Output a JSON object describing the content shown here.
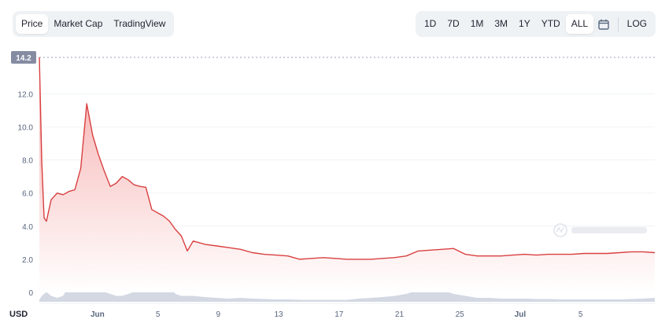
{
  "tabs": [
    "Price",
    "Market Cap",
    "TradingView"
  ],
  "active_tab": "Price",
  "ranges": [
    "1D",
    "7D",
    "1M",
    "3M",
    "1Y",
    "YTD",
    "ALL"
  ],
  "active_range": "ALL",
  "log_label": "LOG",
  "icons": {
    "calendar": "calendar-icon",
    "watermark": "coinmarketcap-logo"
  },
  "colors": {
    "line": "#d94040",
    "fill_top": "#f4a6a6",
    "fill_bottom": "#ffffff",
    "volume": "#c9cfde",
    "text": "#58667e"
  },
  "chart_data": {
    "type": "area",
    "y_unit": "USD",
    "ylim": [
      0,
      14.2
    ],
    "y_ticks": [
      "14.2",
      "12.0",
      "10.0",
      "8.0",
      "6.0",
      "4.0",
      "2.0",
      "0"
    ],
    "x_ticks": [
      "Jun",
      "5",
      "9",
      "13",
      "17",
      "21",
      "25",
      "Jul",
      "5"
    ],
    "x": [
      0,
      0.2,
      0.4,
      0.6,
      1,
      1.5,
      2,
      2.5,
      3,
      3.5,
      4,
      4.5,
      5,
      5.5,
      6,
      6.5,
      7,
      7.5,
      8,
      8.5,
      9,
      9.5,
      10,
      10.5,
      11,
      11.5,
      12,
      12.5,
      13,
      14,
      15,
      16,
      17,
      18,
      19,
      20,
      21,
      22,
      23,
      24,
      25,
      26,
      27,
      28,
      29,
      30,
      31,
      32,
      33,
      34,
      35,
      36,
      37,
      38,
      39,
      40,
      41,
      42,
      43,
      44,
      45,
      46,
      47,
      48,
      49,
      50,
      51,
      52
    ],
    "price": [
      14.2,
      8.0,
      4.5,
      4.3,
      5.6,
      6.0,
      5.9,
      6.1,
      6.2,
      7.5,
      11.4,
      9.5,
      8.3,
      7.3,
      6.4,
      6.6,
      7.0,
      6.8,
      6.5,
      6.4,
      6.35,
      5.0,
      4.8,
      4.6,
      4.3,
      3.8,
      3.4,
      2.5,
      3.1,
      2.9,
      2.8,
      2.7,
      2.6,
      2.4,
      2.3,
      2.25,
      2.2,
      2.0,
      2.05,
      2.1,
      2.05,
      2.0,
      2.0,
      2.0,
      2.05,
      2.1,
      2.2,
      2.5,
      2.55,
      2.6,
      2.65,
      2.3,
      2.2,
      2.2,
      2.2,
      2.25,
      2.3,
      2.25,
      2.3,
      2.3,
      2.3,
      2.35,
      2.35,
      2.35,
      2.4,
      2.45,
      2.45,
      2.4
    ],
    "volume": [
      0.05,
      0.15,
      0.2,
      0.25,
      0.15,
      0.1,
      0.15,
      0.4,
      0.9,
      1.0,
      0.8,
      0.5,
      0.35,
      0.25,
      0.2,
      0.15,
      0.15,
      0.2,
      0.25,
      0.3,
      0.35,
      0.4,
      0.6,
      0.55,
      0.4,
      0.2,
      0.15,
      0.15,
      0.15,
      0.12,
      0.1,
      0.08,
      0.1,
      0.08,
      0.07,
      0.06,
      0.06,
      0.05,
      0.05,
      0.05,
      0.05,
      0.05,
      0.08,
      0.1,
      0.12,
      0.15,
      0.2,
      0.3,
      0.35,
      0.3,
      0.2,
      0.15,
      0.1,
      0.1,
      0.08,
      0.08,
      0.08,
      0.07,
      0.07,
      0.06,
      0.06,
      0.06,
      0.06,
      0.06,
      0.06,
      0.07,
      0.08,
      0.1
    ]
  }
}
